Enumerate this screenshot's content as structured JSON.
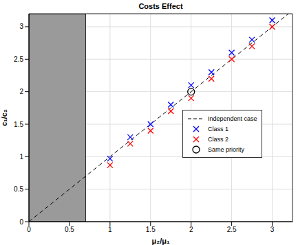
{
  "chart_data": {
    "type": "scatter",
    "title": "Costs Effect",
    "x_label": "μ₂/μ₁",
    "y_label": "c₁/c₂",
    "xlim": [
      0,
      3.25
    ],
    "ylim": [
      0,
      3.2
    ],
    "xticks": [
      0,
      0.5,
      1,
      1.5,
      2,
      2.5,
      3
    ],
    "yticks": [
      0,
      0.5,
      1,
      1.5,
      2,
      2.5,
      3
    ],
    "grid": true,
    "legend": "right",
    "shaded_x": [
      0,
      0.7
    ],
    "series": [
      {
        "name": "Independent case",
        "type": "line",
        "color": "#000000",
        "line_style": "dashed",
        "x": [
          0,
          3.2
        ],
        "values": [
          0,
          3.2
        ]
      },
      {
        "name": "Class 1",
        "type": "scatter",
        "color": "#0000ff",
        "marker": "x",
        "x": [
          1,
          1.25,
          1.5,
          1.75,
          2,
          2.25,
          2.5,
          2.75,
          3
        ],
        "values": [
          0.97,
          1.3,
          1.5,
          1.8,
          2.1,
          2.3,
          2.6,
          2.8,
          3.1
        ]
      },
      {
        "name": "Class 2",
        "type": "scatter",
        "color": "#ff0000",
        "marker": "x",
        "x": [
          1,
          1.25,
          1.5,
          1.75,
          2,
          2.25,
          2.5,
          2.75,
          3
        ],
        "values": [
          0.87,
          1.2,
          1.4,
          1.7,
          1.9,
          2.2,
          2.5,
          2.7,
          3.0
        ]
      },
      {
        "name": "Same priority",
        "type": "scatter",
        "color": "#000000",
        "marker": "o",
        "x": [
          2
        ],
        "values": [
          2
        ]
      }
    ]
  }
}
